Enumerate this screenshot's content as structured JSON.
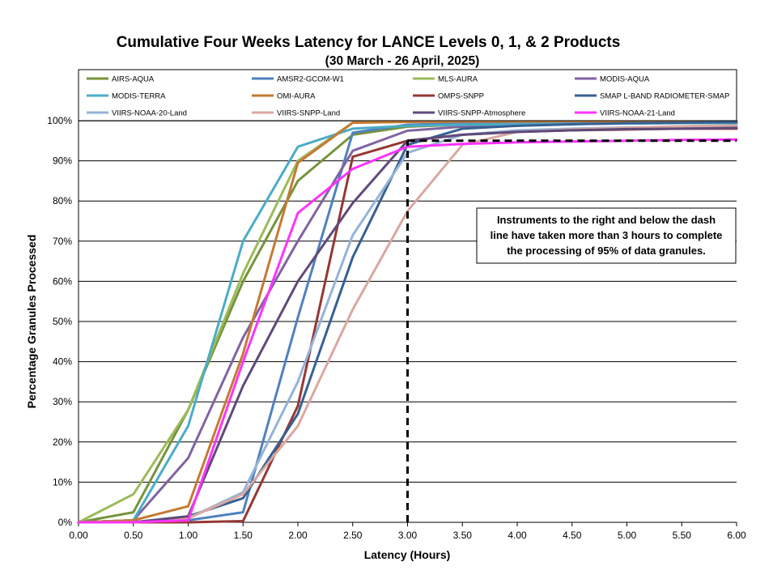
{
  "chart_data": {
    "type": "line",
    "title": "Cumulative Four Weeks Latency  for LANCE Levels 0, 1, & 2 Products",
    "subtitle": "(30  March   - 26  April,  2025)",
    "xlabel": "Latency (Hours)",
    "ylabel": "Percentage Granules Processed",
    "xlim": [
      0,
      6
    ],
    "ylim": [
      0,
      100
    ],
    "x_ticks": [
      "0.00",
      "0.50",
      "1.00",
      "1.50",
      "2.00",
      "2.50",
      "3.00",
      "3.50",
      "4.00",
      "4.50",
      "5.00",
      "5.50",
      "6.00"
    ],
    "y_ticks": [
      "0%",
      "10%",
      "20%",
      "30%",
      "40%",
      "50%",
      "60%",
      "70%",
      "80%",
      "90%",
      "100%"
    ],
    "grid": "horizontal",
    "legend_position": "top",
    "x": [
      0,
      0.5,
      1.0,
      1.5,
      2.0,
      2.5,
      3.0,
      3.5,
      4.0,
      4.5,
      5.0,
      5.5,
      6.0
    ],
    "series": [
      {
        "name": "AIRS-AQUA",
        "color": "#77933c",
        "values": [
          0,
          2.5,
          28,
          60,
          85,
          96.5,
          98.5,
          99,
          99.2,
          99.3,
          99.4,
          99.5,
          99.5
        ]
      },
      {
        "name": "AMSR2-GCOM-W1",
        "color": "#4f81bd",
        "values": [
          0,
          0,
          0.5,
          2.5,
          51,
          97,
          99,
          99.3,
          99.5,
          99.6,
          99.7,
          99.8,
          99.8
        ]
      },
      {
        "name": "MLS-AURA",
        "color": "#9bbb59",
        "values": [
          0,
          7,
          28,
          62,
          90,
          99.5,
          99.7,
          99.8,
          99.8,
          99.9,
          99.9,
          99.9,
          99.9
        ]
      },
      {
        "name": "MODIS-AQUA",
        "color": "#8064a2",
        "values": [
          0,
          0.5,
          16,
          46,
          70,
          92.5,
          97.5,
          98.5,
          99,
          99.2,
          99.3,
          99.4,
          99.4
        ]
      },
      {
        "name": "MODIS-TERRA",
        "color": "#4bacc6",
        "values": [
          0,
          0.5,
          24,
          70,
          93.5,
          98,
          98.7,
          99,
          99.1,
          99.2,
          99.3,
          99.4,
          99.4
        ]
      },
      {
        "name": "OMI-AURA",
        "color": "#c47a33",
        "values": [
          0,
          0.5,
          4,
          42,
          89.5,
          99.5,
          99.7,
          99.8,
          99.8,
          99.9,
          99.9,
          99.9,
          99.9
        ]
      },
      {
        "name": "OMPS-SNPP",
        "color": "#953735",
        "values": [
          0,
          0,
          0,
          0.3,
          29,
          91,
          95,
          96.5,
          97.2,
          97.6,
          97.8,
          98,
          98
        ]
      },
      {
        "name": "SMAP L-BAND RADIOMETER-SMAP",
        "color": "#366092",
        "values": [
          0,
          0,
          1.5,
          6,
          27,
          66,
          94,
          98,
          98.7,
          99.1,
          99.4,
          99.5,
          99.6
        ]
      },
      {
        "name": "VIIRS-NOAA-20-Land",
        "color": "#95b3d7",
        "values": [
          0,
          0,
          1,
          7.5,
          35,
          71.5,
          92,
          96.5,
          97.6,
          98,
          98.3,
          98.5,
          98.6
        ]
      },
      {
        "name": "VIIRS-SNPP-Land",
        "color": "#d9a8a0",
        "values": [
          0,
          0,
          1,
          7,
          24,
          53,
          77.5,
          94,
          97.2,
          97.8,
          98.2,
          98.6,
          98.8
        ]
      },
      {
        "name": "VIIRS-SNPP-Atmosphere",
        "color": "#604a7b",
        "values": [
          0,
          0,
          1.5,
          34,
          60,
          79.5,
          95,
          96.5,
          97.2,
          97.6,
          97.9,
          98,
          98.2
        ]
      },
      {
        "name": "VIIRS-NOAA-21-Land",
        "color": "#ff33ff",
        "values": [
          0,
          0,
          0.5,
          40,
          77,
          88,
          93.5,
          94.2,
          94.6,
          94.8,
          95,
          95.2,
          95.3
        ]
      }
    ],
    "annotation": "Instruments to the right and below the dash line have taken more than 3 hours to complete the processing of 95% of data granules.",
    "threshold": {
      "x": 3.0,
      "y": 95
    }
  },
  "annotation_lines": [
    "Instruments to the right and below the dash",
    "line have taken more than 3 hours to complete",
    "the processing of 95% of data granules."
  ]
}
